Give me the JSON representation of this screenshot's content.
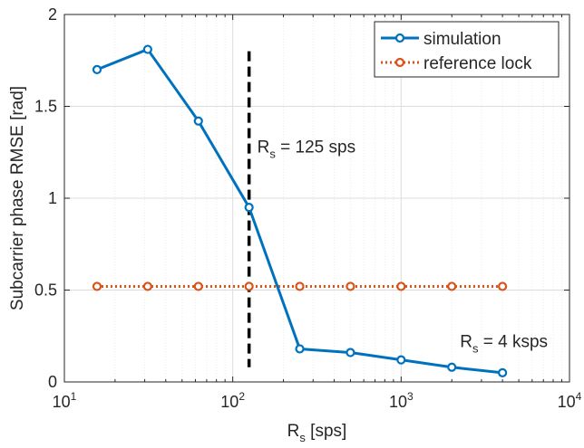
{
  "chart_data": {
    "type": "line",
    "xscale": "log",
    "xlim": [
      10,
      10000
    ],
    "ylim": [
      0,
      2
    ],
    "grid": true,
    "xlabel_main": "R",
    "xlabel_sub": "s",
    "xlabel_rest": " [sps]",
    "ylabel": "Subcarrier phase RMSE [rad]",
    "xticks": [
      {
        "base": "10",
        "exp": "1"
      },
      {
        "base": "10",
        "exp": "2"
      },
      {
        "base": "10",
        "exp": "3"
      },
      {
        "base": "10",
        "exp": "4"
      }
    ],
    "yticks": [
      "0",
      "0.5",
      "1",
      "1.5",
      "2"
    ],
    "legend_position": "top-right",
    "series": [
      {
        "name": "simulation",
        "color": "#0072BD",
        "style": "solid",
        "marker": "circle",
        "x": [
          15.625,
          31.25,
          62.5,
          125,
          250,
          500,
          1000,
          2000,
          4000
        ],
        "y": [
          1.7,
          1.81,
          1.42,
          0.95,
          0.18,
          0.16,
          0.12,
          0.08,
          0.05
        ]
      },
      {
        "name": "reference lock",
        "color": "#D95319",
        "style": "dotted",
        "marker": "circle",
        "x": [
          15.625,
          31.25,
          62.5,
          125,
          250,
          500,
          1000,
          2000,
          4000
        ],
        "y": [
          0.52,
          0.52,
          0.52,
          0.52,
          0.52,
          0.52,
          0.52,
          0.52,
          0.52
        ]
      }
    ],
    "vline": {
      "x": 125,
      "y_from": 0.08,
      "y_to": 1.8,
      "color": "#000000",
      "style": "dashed"
    },
    "annotations": [
      {
        "main": "R",
        "sub": "s",
        "rest": " = 125 sps",
        "x": 125,
        "y": 1.25
      },
      {
        "main": "R",
        "sub": "s",
        "rest": " = 4 ksps",
        "x": 2000,
        "y": 0.19
      }
    ]
  }
}
